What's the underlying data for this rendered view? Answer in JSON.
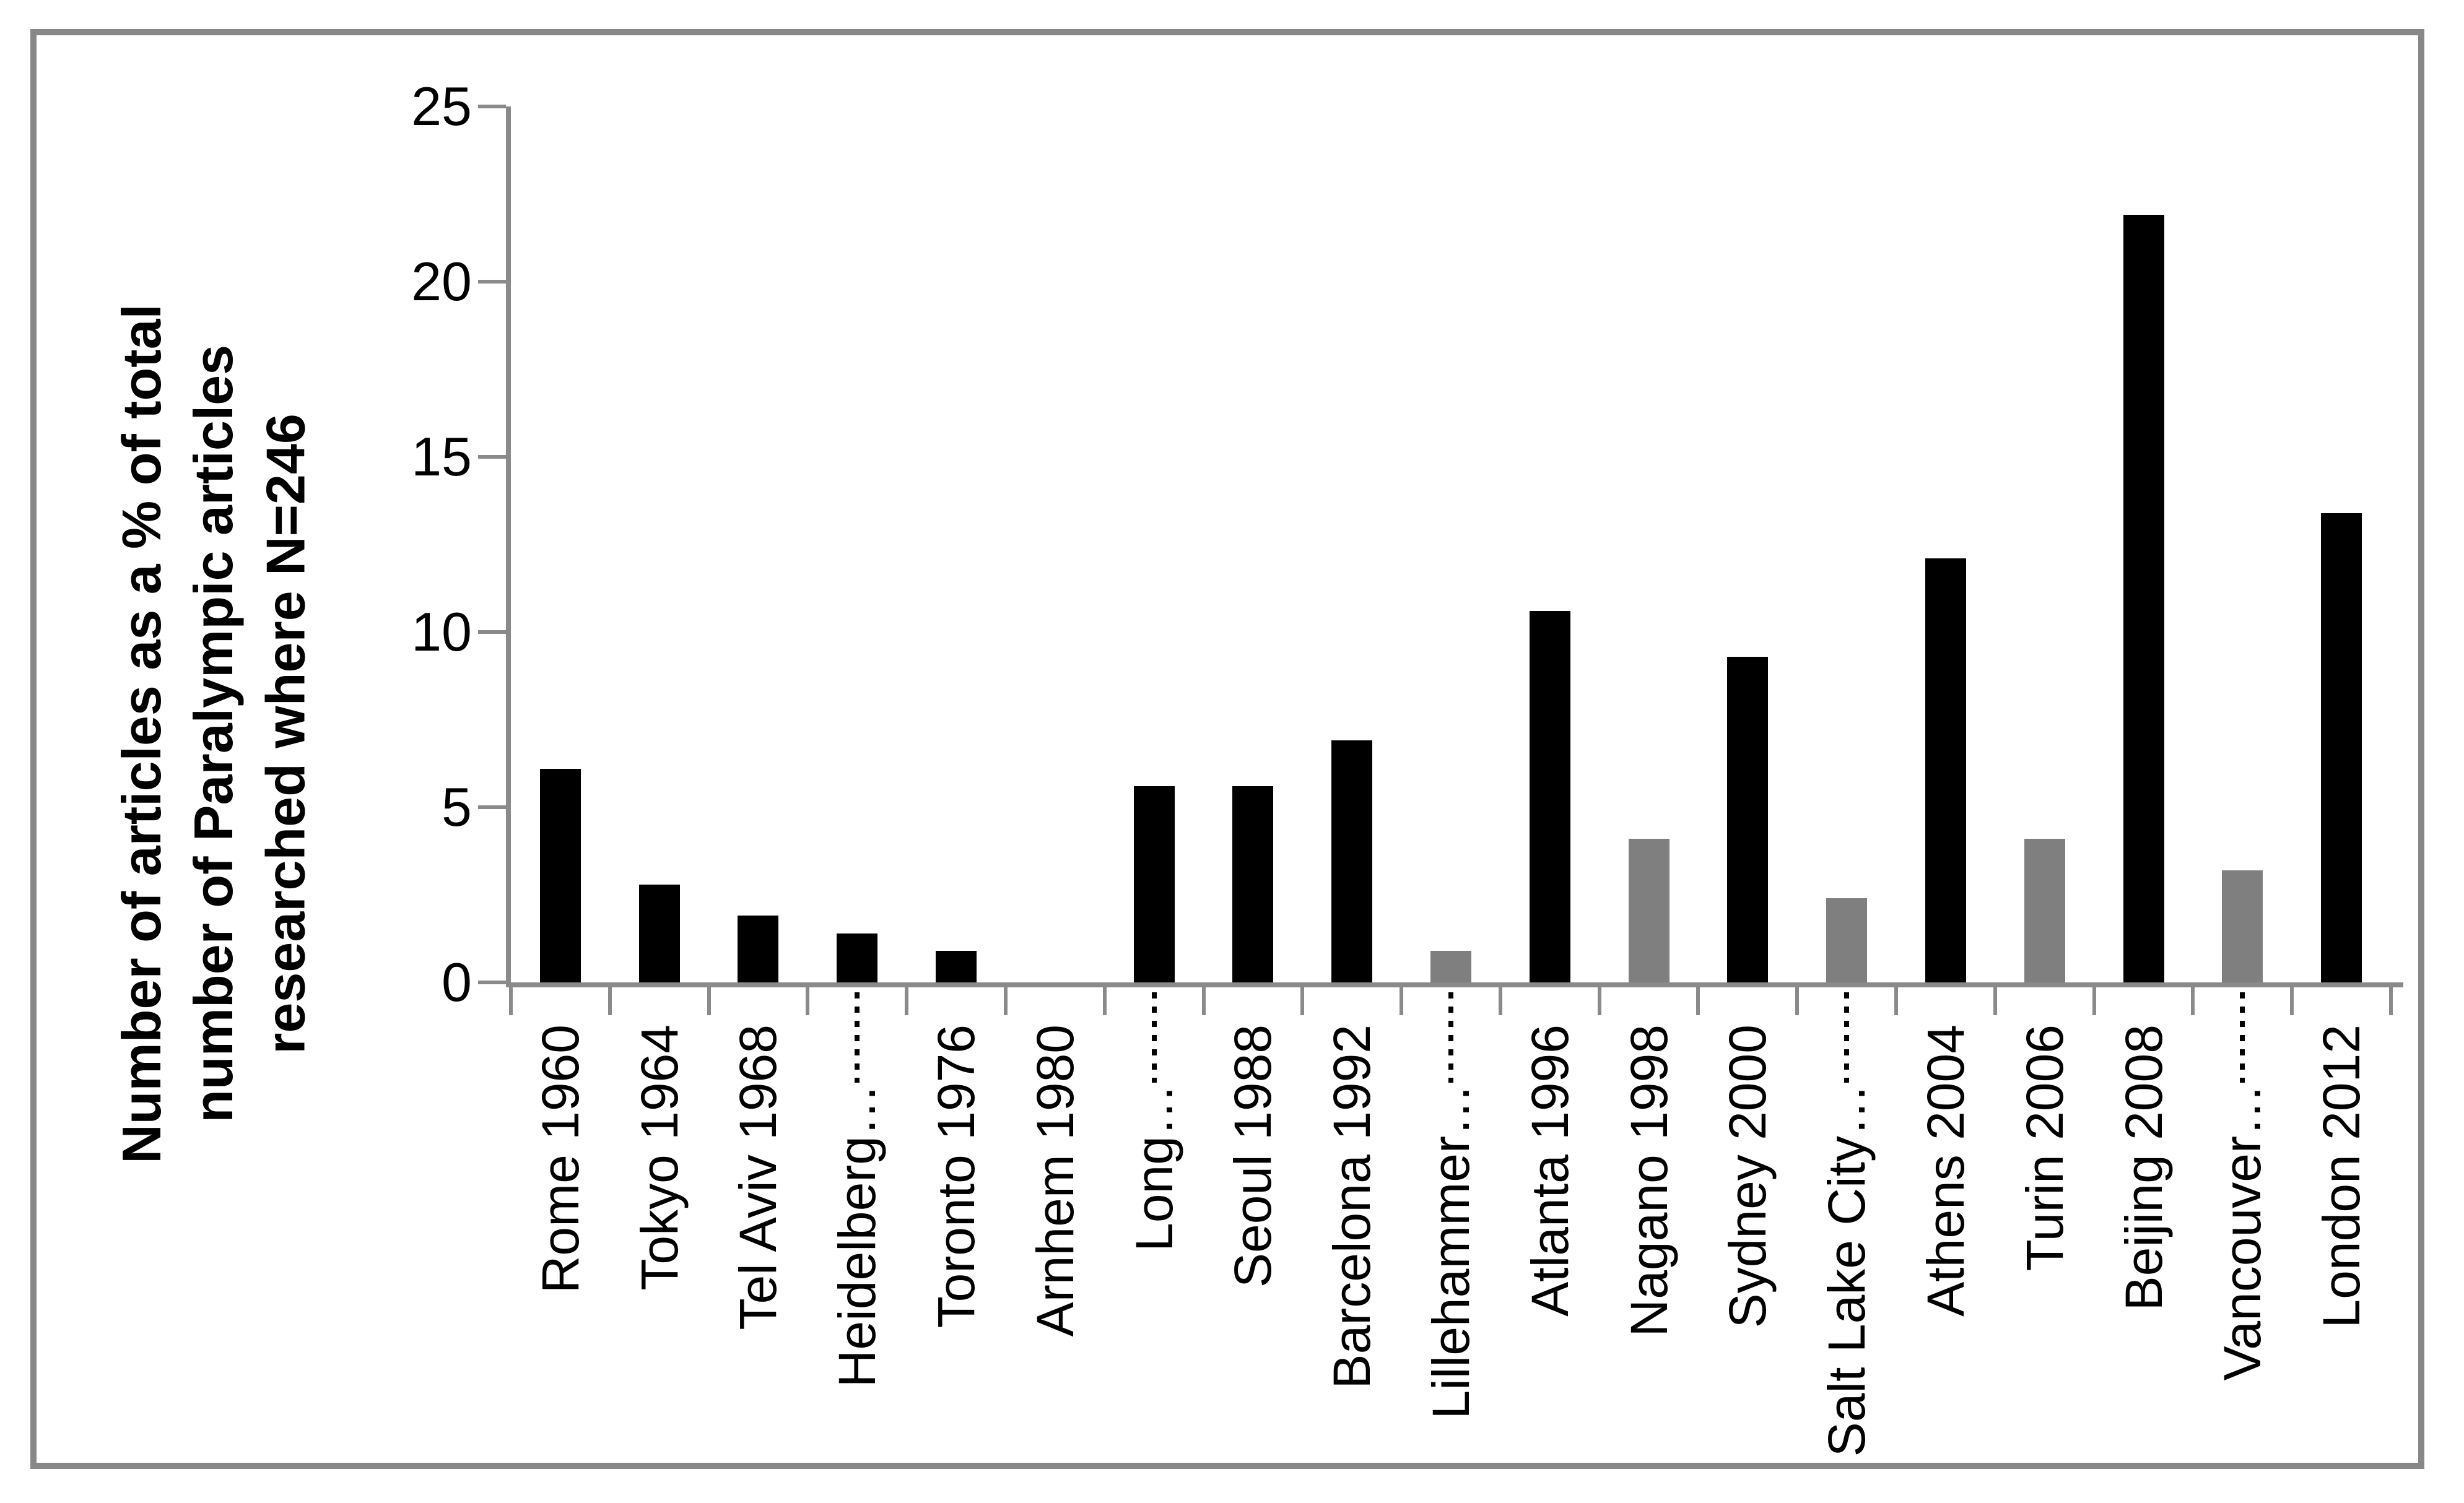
{
  "chart_data": {
    "type": "bar",
    "title": "",
    "xlabel": "",
    "ylabel": "Number of articles as a % of total\nnumber of Paralympic articles\nresearched where N=246",
    "ylim": [
      0,
      25
    ],
    "yticks": [
      0,
      5,
      10,
      15,
      20,
      25
    ],
    "grid": "off",
    "legend": "none",
    "bar_colors": {
      "summer": "#000000",
      "winter": "#7f7f7f"
    },
    "axis_color": "#8a8a8a",
    "frame_color": "#878787",
    "bars": [
      {
        "label": "Rome 1960",
        "value": 6.1,
        "season": "summer",
        "truncated": false
      },
      {
        "label": "Tokyo 1964",
        "value": 2.8,
        "season": "summer",
        "truncated": false
      },
      {
        "label": "Tel Aviv 1968",
        "value": 1.9,
        "season": "summer",
        "truncated": false
      },
      {
        "label": "Heidelberg…",
        "value": 1.4,
        "season": "summer",
        "truncated": true
      },
      {
        "label": "Toronto 1976",
        "value": 0.9,
        "season": "summer",
        "truncated": false
      },
      {
        "label": "Arnhem 1980",
        "value": 0,
        "season": "summer",
        "truncated": false
      },
      {
        "label": "Long…",
        "value": 5.6,
        "season": "summer",
        "truncated": true
      },
      {
        "label": "Seoul 1988",
        "value": 5.6,
        "season": "summer",
        "truncated": false
      },
      {
        "label": "Barcelona 1992",
        "value": 6.9,
        "season": "summer",
        "truncated": false
      },
      {
        "label": "Lillehammer…",
        "value": 0.9,
        "season": "winter",
        "truncated": true
      },
      {
        "label": "Atlanta 1996",
        "value": 10.6,
        "season": "summer",
        "truncated": false
      },
      {
        "label": "Nagano 1998",
        "value": 4.1,
        "season": "winter",
        "truncated": false
      },
      {
        "label": "Sydney 2000",
        "value": 9.3,
        "season": "summer",
        "truncated": false
      },
      {
        "label": "Salt Lake City…",
        "value": 2.4,
        "season": "winter",
        "truncated": true
      },
      {
        "label": "Athens 2004",
        "value": 12.1,
        "season": "summer",
        "truncated": false
      },
      {
        "label": "Turin 2006",
        "value": 4.1,
        "season": "winter",
        "truncated": false
      },
      {
        "label": "Beijing 2008",
        "value": 21.9,
        "season": "summer",
        "truncated": false
      },
      {
        "label": "Vancouver…",
        "value": 3.2,
        "season": "winter",
        "truncated": true
      },
      {
        "label": "London 2012",
        "value": 13.4,
        "season": "summer",
        "truncated": false
      }
    ]
  }
}
